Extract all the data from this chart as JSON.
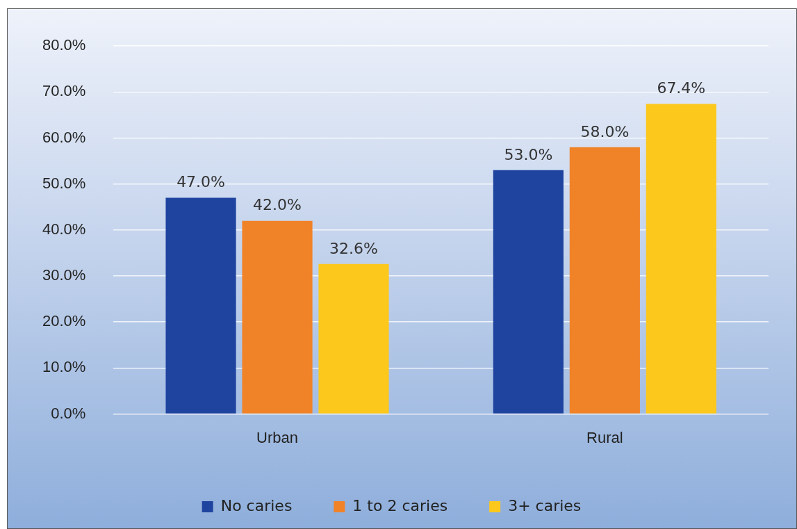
{
  "chart_data": {
    "type": "bar",
    "categories": [
      "Urban",
      "Rural"
    ],
    "series": [
      {
        "name": "No caries",
        "color": "#1f44a0",
        "values": [
          47.0,
          53.0
        ],
        "value_labels": [
          "47.0%",
          "53.0%"
        ]
      },
      {
        "name": "1 to 2 caries",
        "color": "#f08228",
        "values": [
          42.0,
          58.0
        ],
        "value_labels": [
          "42.0%",
          "58.0%"
        ]
      },
      {
        "name": "3+ caries",
        "color": "#fcc81c",
        "values": [
          32.6,
          67.4
        ],
        "value_labels": [
          "32.6%",
          "67.4%"
        ]
      }
    ],
    "ylim": [
      0,
      80
    ],
    "yticks": [
      {
        "value": 0,
        "label": "0.0%"
      },
      {
        "value": 10,
        "label": "10.0%"
      },
      {
        "value": 20,
        "label": "20.0%"
      },
      {
        "value": 30,
        "label": "30.0%"
      },
      {
        "value": 40,
        "label": "40.0%"
      },
      {
        "value": 50,
        "label": "50.0%"
      },
      {
        "value": 60,
        "label": "60.0%"
      },
      {
        "value": 70,
        "label": "70.0%"
      },
      {
        "value": 80,
        "label": "80.0%"
      }
    ],
    "grid": "y",
    "legend": "bottom"
  }
}
